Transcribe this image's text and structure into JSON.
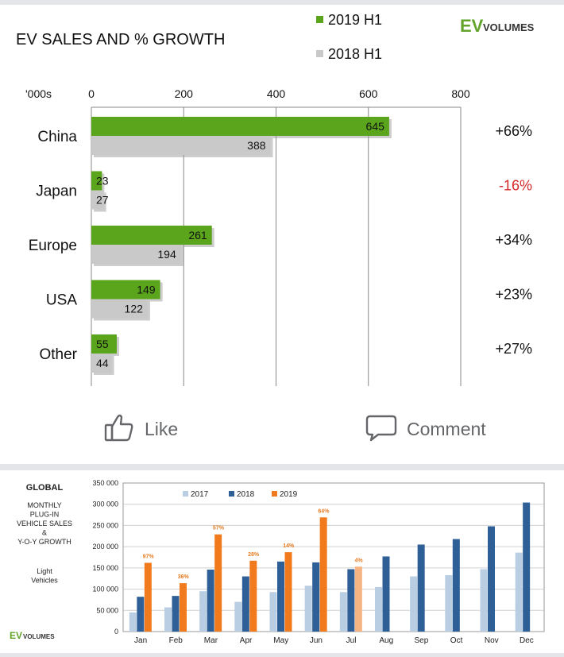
{
  "chart1": {
    "title": "EV SALES AND % GROWTH",
    "unit": "'000s",
    "logo_ev": "EV",
    "logo_volumes": "VOLUMES",
    "legend": [
      "2019 H1",
      "2018 H1"
    ],
    "colors": {
      "s2019": "#5aa51b",
      "s2018": "#c9c9c9",
      "negative": "#d42a2a",
      "brand": "#62a42b"
    },
    "xticks": [
      0,
      200,
      400,
      600,
      800
    ],
    "growth_negative": [
      false,
      true,
      false,
      false,
      false
    ]
  },
  "chart_data": [
    {
      "type": "bar",
      "orientation": "horizontal",
      "title": "EV SALES AND % GROWTH",
      "xlabel": "'000s",
      "xlim": [
        0,
        800
      ],
      "categories": [
        "China",
        "Japan",
        "Europe",
        "USA",
        "Other"
      ],
      "series": [
        {
          "name": "2019 H1",
          "values": [
            645,
            23,
            261,
            149,
            55
          ]
        },
        {
          "name": "2018 H1",
          "values": [
            388,
            27,
            194,
            122,
            44
          ]
        }
      ],
      "growth_labels": [
        "+66%",
        "-16%",
        "+34%",
        "+23%",
        "+27%"
      ],
      "legend": "top-right",
      "grid": true
    },
    {
      "type": "bar",
      "title_lines": [
        "GLOBAL"
      ],
      "subtitle_lines": [
        "MONTHLY",
        "PLUG-IN",
        "VEHICLE SALES",
        "&",
        "Y-O-Y GROWTH"
      ],
      "note_lines": [
        "Light",
        "Vehicles"
      ],
      "categories": [
        "Jan",
        "Feb",
        "Mar",
        "Apr",
        "May",
        "Jun",
        "Jul",
        "Aug",
        "Sep",
        "Oct",
        "Nov",
        "Dec"
      ],
      "ylim": [
        0,
        350000
      ],
      "yticks": [
        "0",
        "50 000",
        "100 000",
        "150 000",
        "200 000",
        "250 000",
        "300 000",
        "350 000"
      ],
      "series": [
        {
          "name": "2017",
          "values": [
            45000,
            57000,
            95000,
            70000,
            93000,
            108000,
            93000,
            105000,
            130000,
            133000,
            147000,
            186000
          ]
        },
        {
          "name": "2018",
          "values": [
            82000,
            84000,
            146000,
            130000,
            165000,
            163000,
            147000,
            177000,
            205000,
            218000,
            248000,
            304000
          ]
        },
        {
          "name": "2019",
          "values": [
            162000,
            114000,
            229000,
            167000,
            187000,
            269000,
            153000,
            null,
            null,
            null,
            null,
            null
          ]
        }
      ],
      "growth_labels": [
        "97%",
        "36%",
        "57%",
        "28%",
        "14%",
        "64%",
        "4%"
      ],
      "legend": "top-center",
      "grid": true
    }
  ],
  "chart2": {
    "colors": {
      "s2017": "#b9cde3",
      "s2018": "#2e5f96",
      "s2019": "#f07a1c",
      "s2019_light": "#f7b483",
      "label": "#e57b20"
    },
    "brand": "EV",
    "brand_sub": "VOLUMES"
  },
  "actions": {
    "like": "Like",
    "comment": "Comment"
  }
}
